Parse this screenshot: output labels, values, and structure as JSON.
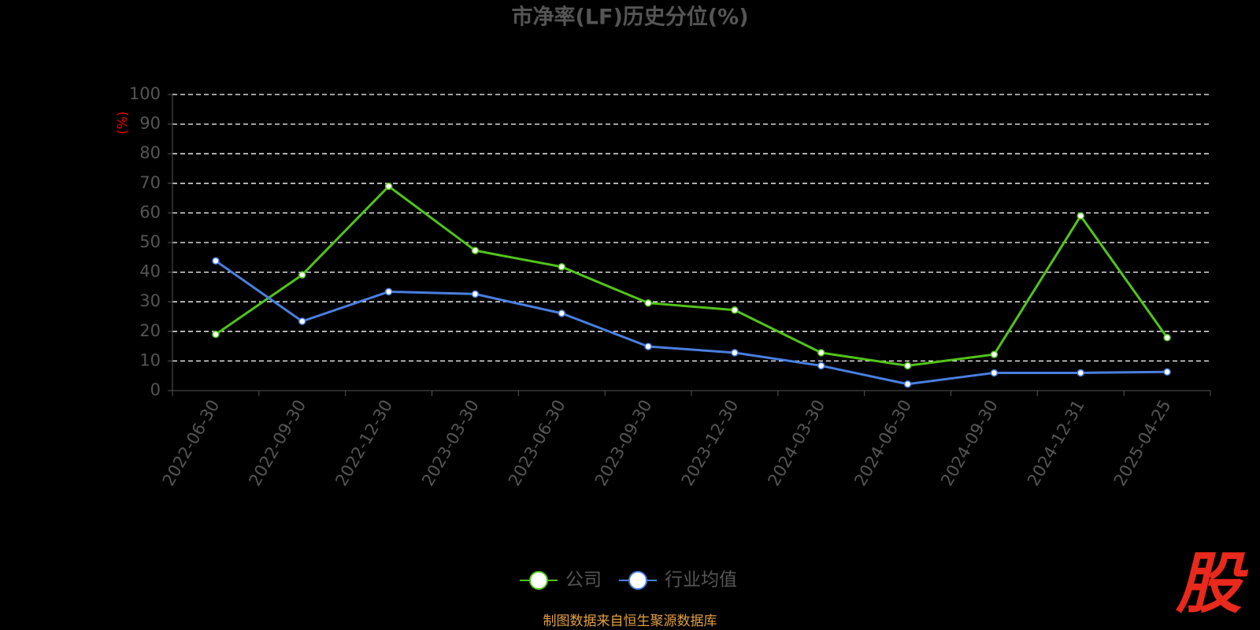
{
  "chart_data": {
    "type": "line",
    "title": "市净率(LF)历史分位(%)",
    "y_label": "(%)",
    "categories": [
      "2022-06-30",
      "2022-09-30",
      "2022-12-30",
      "2023-03-30",
      "2023-06-30",
      "2023-09-30",
      "2023-12-30",
      "2024-03-30",
      "2024-06-30",
      "2024-09-30",
      "2024-12-31",
      "2025-04-25"
    ],
    "series": [
      {
        "name": "公司",
        "color": "#52c41a",
        "values": [
          19.0,
          39.1,
          69.0,
          47.3,
          41.8,
          29.6,
          27.2,
          12.8,
          8.4,
          12.2,
          59.0,
          17.9
        ]
      },
      {
        "name": "行业均值",
        "color": "#4a7fe0",
        "values": [
          43.8,
          23.4,
          33.4,
          32.6,
          26.1,
          14.9,
          12.8,
          8.4,
          2.2,
          6.0,
          6.0,
          6.3
        ]
      }
    ],
    "ylim": [
      0,
      100
    ],
    "yticks": [
      0,
      10,
      20,
      30,
      40,
      50,
      60,
      70,
      80,
      90,
      100
    ],
    "grid": true,
    "legend": "bottom",
    "source": "制图数据来自恒生聚源数据库",
    "logo": "股"
  }
}
